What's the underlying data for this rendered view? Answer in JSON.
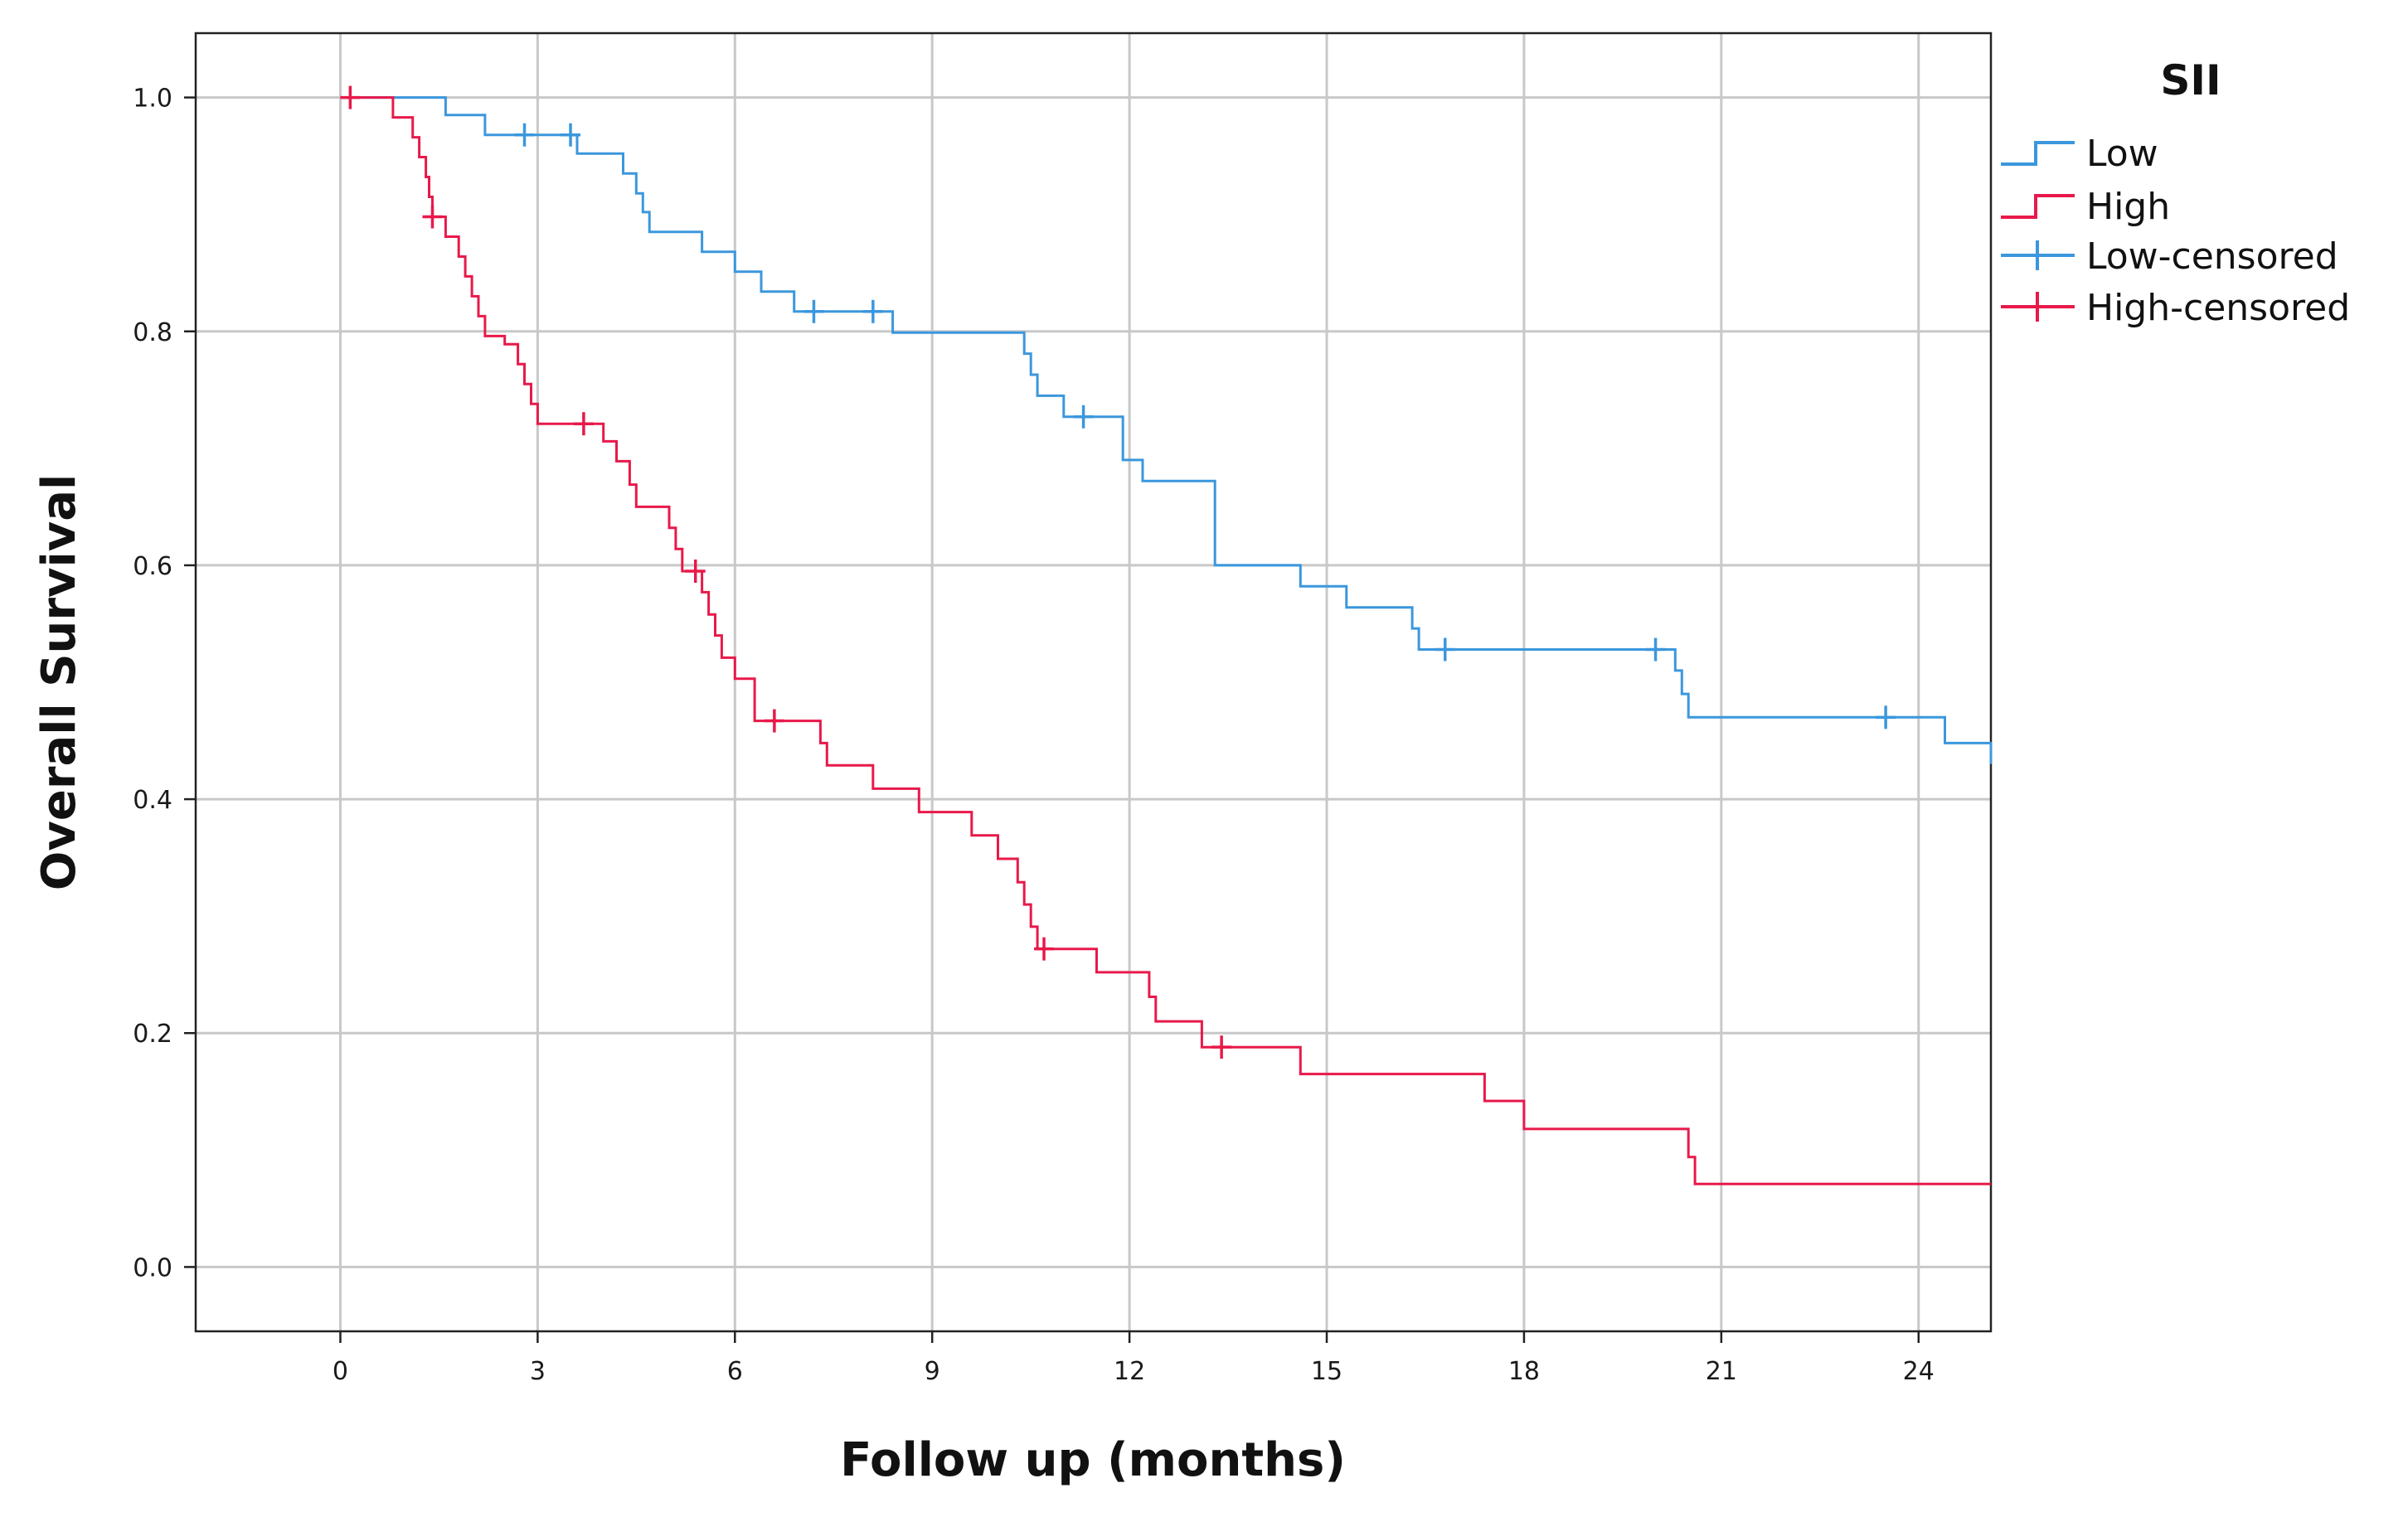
{
  "chart_data": {
    "type": "line",
    "subtype": "kaplan-meier",
    "title": "",
    "xlabel": "Follow up (months)",
    "ylabel": "Overall Survival",
    "xlim": [
      -2.2,
      25.1
    ],
    "ylim": [
      -0.055,
      1.055
    ],
    "x_ticks": [
      0,
      3,
      6,
      9,
      12,
      15,
      18,
      21,
      24
    ],
    "y_ticks": [
      0.0,
      0.2,
      0.4,
      0.6,
      0.8,
      1.0
    ],
    "x_tick_labels": [
      "0",
      "3",
      "6",
      "9",
      "12",
      "15",
      "18",
      "21",
      "24"
    ],
    "y_tick_labels": [
      "0.0",
      "0.2",
      "0.4",
      "0.6",
      "0.8",
      "1.0"
    ],
    "grid": true,
    "legend": {
      "title": "SII",
      "position": "right-top",
      "entries": [
        "Low",
        "High",
        "Low-censored",
        "High-censored"
      ]
    },
    "series": [
      {
        "name": "Low",
        "color": "#3b97dd",
        "x": [
          0,
          1.6,
          2.2,
          3.6,
          4.3,
          4.5,
          4.6,
          4.7,
          5.5,
          6.0,
          6.4,
          6.9,
          8.4,
          10.4,
          10.5,
          10.6,
          11.0,
          11.9,
          12.2,
          13.3,
          14.6,
          15.3,
          16.3,
          16.4,
          20.3,
          20.4,
          20.5,
          20.8,
          24.4,
          25.1
        ],
        "y": [
          1.0,
          0.985,
          0.968,
          0.952,
          0.935,
          0.918,
          0.902,
          0.885,
          0.868,
          0.851,
          0.834,
          0.817,
          0.799,
          0.781,
          0.763,
          0.745,
          0.727,
          0.69,
          0.672,
          0.6,
          0.582,
          0.564,
          0.546,
          0.528,
          0.51,
          0.49,
          0.47,
          0.47,
          0.448,
          0.43
        ],
        "censored": [
          {
            "x": 2.8,
            "y": 0.968
          },
          {
            "x": 3.5,
            "y": 0.968
          },
          {
            "x": 7.2,
            "y": 0.817
          },
          {
            "x": 8.1,
            "y": 0.817
          },
          {
            "x": 11.3,
            "y": 0.727
          },
          {
            "x": 16.8,
            "y": 0.528
          },
          {
            "x": 20.0,
            "y": 0.528
          },
          {
            "x": 23.5,
            "y": 0.47
          }
        ]
      },
      {
        "name": "High",
        "color": "#e8194a",
        "x": [
          0,
          0.8,
          1.1,
          1.2,
          1.3,
          1.35,
          1.4,
          1.6,
          1.8,
          1.9,
          2.0,
          2.1,
          2.2,
          2.5,
          2.7,
          2.8,
          2.9,
          3.0,
          3.1,
          4.0,
          4.2,
          4.4,
          4.5,
          4.6,
          5.0,
          5.1,
          5.2,
          5.5,
          5.6,
          5.7,
          5.8,
          6.0,
          6.3,
          7.3,
          7.4,
          7.6,
          8.1,
          8.8,
          9.6,
          10.0,
          10.3,
          10.4,
          10.5,
          10.6,
          11.5,
          12.2,
          12.3,
          12.4,
          13.1,
          14.6,
          17.4,
          18.0,
          20.5,
          20.6,
          25.1
        ],
        "y": [
          1.0,
          0.983,
          0.966,
          0.949,
          0.932,
          0.915,
          0.898,
          0.881,
          0.864,
          0.847,
          0.83,
          0.813,
          0.796,
          0.789,
          0.772,
          0.755,
          0.738,
          0.721,
          0.721,
          0.706,
          0.689,
          0.669,
          0.65,
          0.65,
          0.632,
          0.614,
          0.595,
          0.577,
          0.558,
          0.54,
          0.521,
          0.503,
          0.467,
          0.448,
          0.429,
          0.429,
          0.409,
          0.389,
          0.369,
          0.349,
          0.329,
          0.31,
          0.291,
          0.272,
          0.252,
          0.252,
          0.231,
          0.21,
          0.188,
          0.165,
          0.142,
          0.118,
          0.094,
          0.071,
          0.071
        ],
        "censored": [
          {
            "x": 0.15,
            "y": 1.0
          },
          {
            "x": 1.4,
            "y": 0.898
          },
          {
            "x": 3.7,
            "y": 0.721
          },
          {
            "x": 5.4,
            "y": 0.595
          },
          {
            "x": 6.6,
            "y": 0.467
          },
          {
            "x": 10.7,
            "y": 0.272
          },
          {
            "x": 13.4,
            "y": 0.188
          }
        ]
      }
    ]
  }
}
